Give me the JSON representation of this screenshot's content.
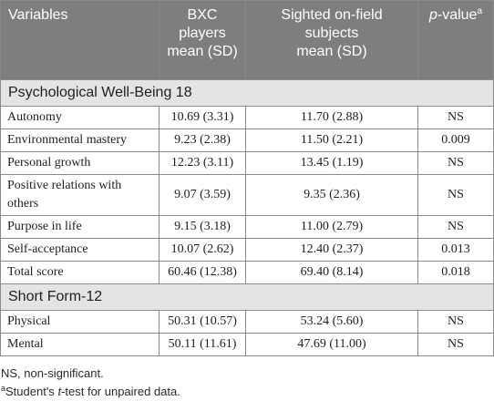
{
  "header": {
    "variables": "Variables",
    "bxc_line1": "BXC",
    "bxc_line2": "players",
    "bxc_line3": "mean (SD)",
    "sighted_line1": "Sighted on-field",
    "sighted_line2": "subjects",
    "sighted_line3": "mean (SD)",
    "p_italic": "p",
    "p_rest": "-value",
    "p_sup": "a"
  },
  "sections": [
    {
      "title": "Psychological Well-Being 18",
      "rows": [
        {
          "variable": "Autonomy",
          "bxc": "10.69 (3.31)",
          "sighted": "11.70 (2.88)",
          "p": "NS"
        },
        {
          "variable": "Environmental mastery",
          "bxc": "9.23 (2.38)",
          "sighted": "11.50 (2.21)",
          "p": "0.009"
        },
        {
          "variable": "Personal growth",
          "bxc": "12.23 (3.11)",
          "sighted": "13.45 (1.19)",
          "p": "NS"
        },
        {
          "variable": "Positive relations with others",
          "bxc": "9.07 (3.59)",
          "sighted": "9.35 (2.36)",
          "p": "NS"
        },
        {
          "variable": "Purpose in life",
          "bxc": "9.15 (3.18)",
          "sighted": "11.00 (2.79)",
          "p": "NS"
        },
        {
          "variable": "Self-acceptance",
          "bxc": "10.07 (2.62)",
          "sighted": "12.40 (2.37)",
          "p": "0.013"
        },
        {
          "variable": "Total score",
          "bxc": "60.46 (12.38)",
          "sighted": "69.40 (8.14)",
          "p": "0.018"
        }
      ]
    },
    {
      "title": "Short Form-12",
      "rows": [
        {
          "variable": "Physical",
          "bxc": "50.31 (10.57)",
          "sighted": "53.24 (5.60)",
          "p": "NS"
        },
        {
          "variable": "Mental",
          "bxc": "50.11 (11.61)",
          "sighted": "47.69 (11.00)",
          "p": "NS"
        }
      ]
    }
  ],
  "footnotes": {
    "ns_note": "NS, non-significant.",
    "a_sup": "a",
    "a_text_before": "Student's ",
    "a_text_italic": "t",
    "a_text_after": "-test for unpaired data."
  }
}
